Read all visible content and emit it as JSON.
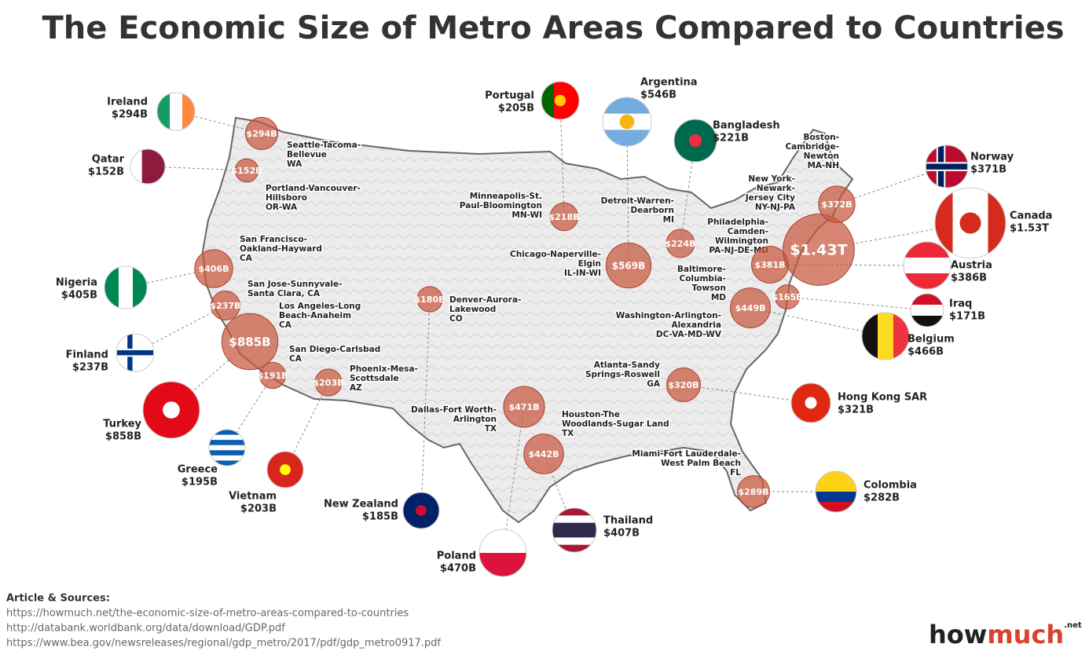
{
  "title": "The Economic Size of Metro Areas Compared to Countries",
  "metros": [
    {
      "name_lines": [
        "Seattle-Tacoma-",
        "Bellevue",
        "WA"
      ],
      "value": 294,
      "value_label": "$294B"
    },
    {
      "name_lines": [
        "Portland-Vancouver-",
        "Hillsboro",
        "OR-WA"
      ],
      "value": 152,
      "value_label": "$152B"
    },
    {
      "name_lines": [
        "San Francisco-",
        "Oakland-Hayward",
        "CA"
      ],
      "value": 406,
      "value_label": "$406B"
    },
    {
      "name_lines": [
        "San Jose-Sunnyvale-",
        "Santa Clara, CA"
      ],
      "value": 237,
      "value_label": "$237B"
    },
    {
      "name_lines": [
        "Los Angeles-Long",
        "Beach-Anaheim",
        "CA"
      ],
      "value": 885,
      "value_label": "$885B"
    },
    {
      "name_lines": [
        "San Diego-Carlsbad",
        "CA"
      ],
      "value": 191,
      "value_label": "$191B"
    },
    {
      "name_lines": [
        "Phoenix-Mesa-",
        "Scottsdale",
        "AZ"
      ],
      "value": 203,
      "value_label": "$203B"
    },
    {
      "name_lines": [
        "Denver-Aurora-",
        "Lakewood",
        "CO"
      ],
      "value": 180,
      "value_label": "$180B"
    },
    {
      "name_lines": [
        "Minneapolis-St.",
        "Paul-Bloomington",
        "MN-WI"
      ],
      "value": 218,
      "value_label": "$218B"
    },
    {
      "name_lines": [
        "Chicago-Naperville-",
        "Elgin",
        "IL-IN-WI"
      ],
      "value": 569,
      "value_label": "$569B"
    },
    {
      "name_lines": [
        "Detroit-Warren-",
        "Dearborn",
        "MI"
      ],
      "value": 224,
      "value_label": "$224B"
    },
    {
      "name_lines": [
        "Dallas-Fort Worth-",
        "Arlington",
        "TX"
      ],
      "value": 471,
      "value_label": "$471B"
    },
    {
      "name_lines": [
        "Houston-The",
        "Woodlands-Sugar Land",
        "TX"
      ],
      "value": 442,
      "value_label": "$442B"
    },
    {
      "name_lines": [
        "Atlanta-Sandy",
        "Springs-Roswell",
        "GA"
      ],
      "value": 320,
      "value_label": "$320B"
    },
    {
      "name_lines": [
        "Miami-Fort Lauderdale-",
        "West Palm Beach",
        "FL"
      ],
      "value": 289,
      "value_label": "$289B"
    },
    {
      "name_lines": [
        "Washington-Arlington-",
        "Alexandria",
        "DC-VA-MD-WV"
      ],
      "value": 449,
      "value_label": "$449B"
    },
    {
      "name_lines": [
        "Baltimore-",
        "Columbia-",
        "Towson",
        "MD"
      ],
      "value": 165,
      "value_label": "$165B"
    },
    {
      "name_lines": [
        "Philadelphia-",
        "Camden-",
        "Wilmington",
        "PA-NJ-DE-MD"
      ],
      "value": 381,
      "value_label": "$381B"
    },
    {
      "name_lines": [
        "New York-",
        "Newark-",
        "Jersey City",
        "NY-NJ-PA"
      ],
      "value": 1430,
      "value_label": "$1.43T"
    },
    {
      "name_lines": [
        "Boston-",
        "Cambridge-",
        "Newton",
        "MA-NH"
      ],
      "value": 372,
      "value_label": "$372B"
    }
  ],
  "countries": [
    {
      "name": "Ireland",
      "value_label": "$294B"
    },
    {
      "name": "Qatar",
      "value_label": "$152B"
    },
    {
      "name": "Nigeria",
      "value_label": "$405B"
    },
    {
      "name": "Finland",
      "value_label": "$237B"
    },
    {
      "name": "Turkey",
      "value_label": "$858B"
    },
    {
      "name": "Greece",
      "value_label": "$195B"
    },
    {
      "name": "Vietnam",
      "value_label": "$203B"
    },
    {
      "name": "New  Zealand",
      "value_label": "$185B"
    },
    {
      "name": "Portugal",
      "value_label": "$205B"
    },
    {
      "name": "Argentina",
      "value_label": "$546B"
    },
    {
      "name": "Bangladesh",
      "value_label": "$221B"
    },
    {
      "name": "Poland",
      "value_label": "$470B"
    },
    {
      "name": "Thailand",
      "value_label": "$407B"
    },
    {
      "name": "Hong Kong SAR",
      "value_label": "$321B"
    },
    {
      "name": "Colombia",
      "value_label": "$282B"
    },
    {
      "name": "Belgium",
      "value_label": "$466B"
    },
    {
      "name": "Iraq",
      "value_label": "$171B"
    },
    {
      "name": "Austria",
      "value_label": "$386B"
    },
    {
      "name": "Canada",
      "value_label": "$1.53T"
    },
    {
      "name": "Norway",
      "value_label": "$371B"
    }
  ],
  "sources": {
    "heading": "Article & Sources:",
    "links": [
      "https://howmuch.net/the-economic-size-of-metro-areas-compared-to-countries",
      "http://databank.worldbank.org/data/download/GDP.pdf",
      "https://www.bea.gov/newsreleases/regional/gdp_metro/2017/pdf/gdp_metro0917.pdf"
    ]
  },
  "logo": {
    "how": "how",
    "much": "much",
    "suffix": ".net"
  }
}
